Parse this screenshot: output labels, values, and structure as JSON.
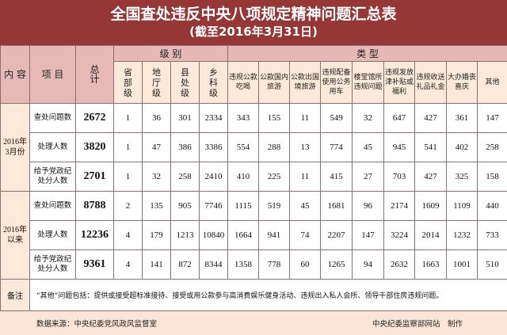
{
  "title": "全国查处违反中央八项规定精神问题汇总表",
  "subtitle": "(截至2016年3月31日)",
  "headers": {
    "content": "内 容",
    "item": "项 目",
    "total": "总\n计",
    "level_group": "级 别",
    "type_group": "类 型",
    "levels": [
      "省\n部\n级",
      "地\n厅\n级",
      "县\n处\n级",
      "乡\n科\n级"
    ],
    "types": [
      "违规公款\n吃喝",
      "公款国内\n旅游",
      "公款出国\n境旅游",
      "违规配备\n使用公务\n用车",
      "楼堂馆所\n违规问题",
      "违规发放\n津补贴或\n福利",
      "违规收送\n礼品礼金",
      "大办婚丧\n喜庆",
      "其他"
    ]
  },
  "groups": [
    {
      "label": "2016年\n3月份",
      "rows": [
        {
          "item": "查处问题数",
          "total": "2672",
          "values": [
            "1",
            "36",
            "301",
            "2334",
            "343",
            "155",
            "11",
            "549",
            "32",
            "647",
            "427",
            "361",
            "147"
          ]
        },
        {
          "item": "处理人数",
          "total": "3820",
          "values": [
            "1",
            "47",
            "386",
            "3386",
            "554",
            "288",
            "13",
            "774",
            "45",
            "945",
            "541",
            "402",
            "258"
          ]
        },
        {
          "item": "给予党政纪\n处分人数",
          "total": "2701",
          "values": [
            "1",
            "32",
            "258",
            "2410",
            "410",
            "225",
            "11",
            "415",
            "27",
            "703",
            "427",
            "325",
            "158"
          ]
        }
      ]
    },
    {
      "label": "2016年\n以来",
      "rows": [
        {
          "item": "查处问题数",
          "total": "8788",
          "values": [
            "2",
            "135",
            "905",
            "7746",
            "1115",
            "519",
            "45",
            "1681",
            "96",
            "2174",
            "1609",
            "1109",
            "440"
          ]
        },
        {
          "item": "处理人数",
          "total": "12236",
          "values": [
            "4",
            "179",
            "1213",
            "10840",
            "1664",
            "941",
            "74",
            "2207",
            "147",
            "3224",
            "2014",
            "1232",
            "733"
          ]
        },
        {
          "item": "给予党政纪\n处分人数",
          "total": "9361",
          "values": [
            "4",
            "141",
            "872",
            "8344",
            "1358",
            "778",
            "60",
            "1265",
            "94",
            "2632",
            "1663",
            "1001",
            "510"
          ]
        }
      ]
    }
  ],
  "note_label": "备注",
  "note": "“其他”问题包括：提供或接受超标准接待、接受或用公款参与高消费娱乐健身活动、违规出入私人会所、领导干部住房违规问题。",
  "source": "数据来源：中央纪委党风政风监督室",
  "credit": "中央纪委监察部网站　制作",
  "colors": {
    "title_bg": "#953735",
    "header_bg": "#e6b8b8",
    "side_bg": "#fde9d9"
  }
}
